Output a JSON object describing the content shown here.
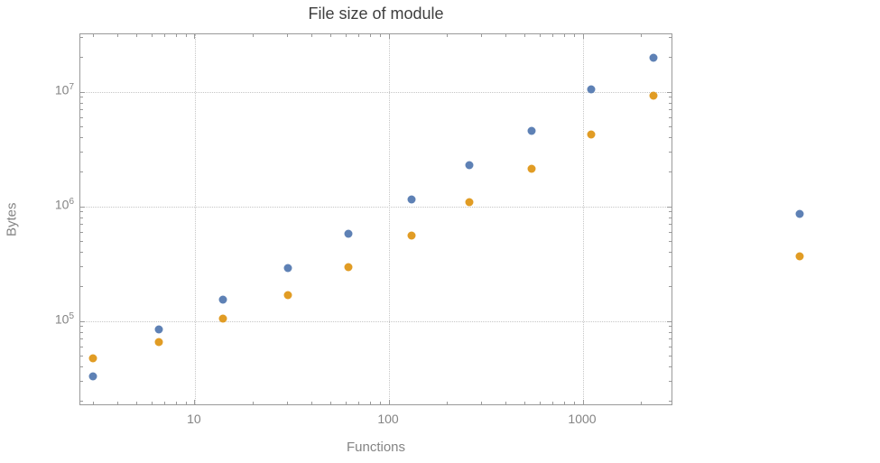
{
  "chart_data": {
    "type": "scatter",
    "title": "File size of module",
    "xlabel": "Functions",
    "ylabel": "Bytes",
    "xscale": "log",
    "yscale": "log",
    "grid": "dotted",
    "grid_color": "#c6c6c6",
    "frame_color": "#9a9a9a",
    "label_color": "#848484",
    "legend": "none",
    "xlim": [
      2.57,
      2917
    ],
    "ylim": [
      18200,
      31900000
    ],
    "x_ticks": [
      {
        "value": 10,
        "label": "10"
      },
      {
        "value": 100,
        "label": "100"
      },
      {
        "value": 1000,
        "label": "1000"
      }
    ],
    "y_ticks": [
      {
        "value": 100000,
        "base": "10",
        "exp": "5"
      },
      {
        "value": 1000000,
        "base": "10",
        "exp": "6"
      },
      {
        "value": 10000000,
        "base": "10",
        "exp": "7"
      }
    ],
    "x": [
      3,
      6.5,
      14,
      30,
      62,
      130,
      260,
      540,
      1100,
      2300,
      13000
    ],
    "series": [
      {
        "name": "blue",
        "color": "#5e81b5",
        "values": [
          33000,
          85000,
          155000,
          290000,
          580000,
          1150000,
          2300000,
          4600000,
          10500000,
          20000000,
          860000
        ]
      },
      {
        "name": "orange",
        "color": "#e19c24",
        "values": [
          48000,
          66000,
          105000,
          170000,
          295000,
          560000,
          1100000,
          2150000,
          4300000,
          9300000,
          370000
        ]
      }
    ]
  }
}
